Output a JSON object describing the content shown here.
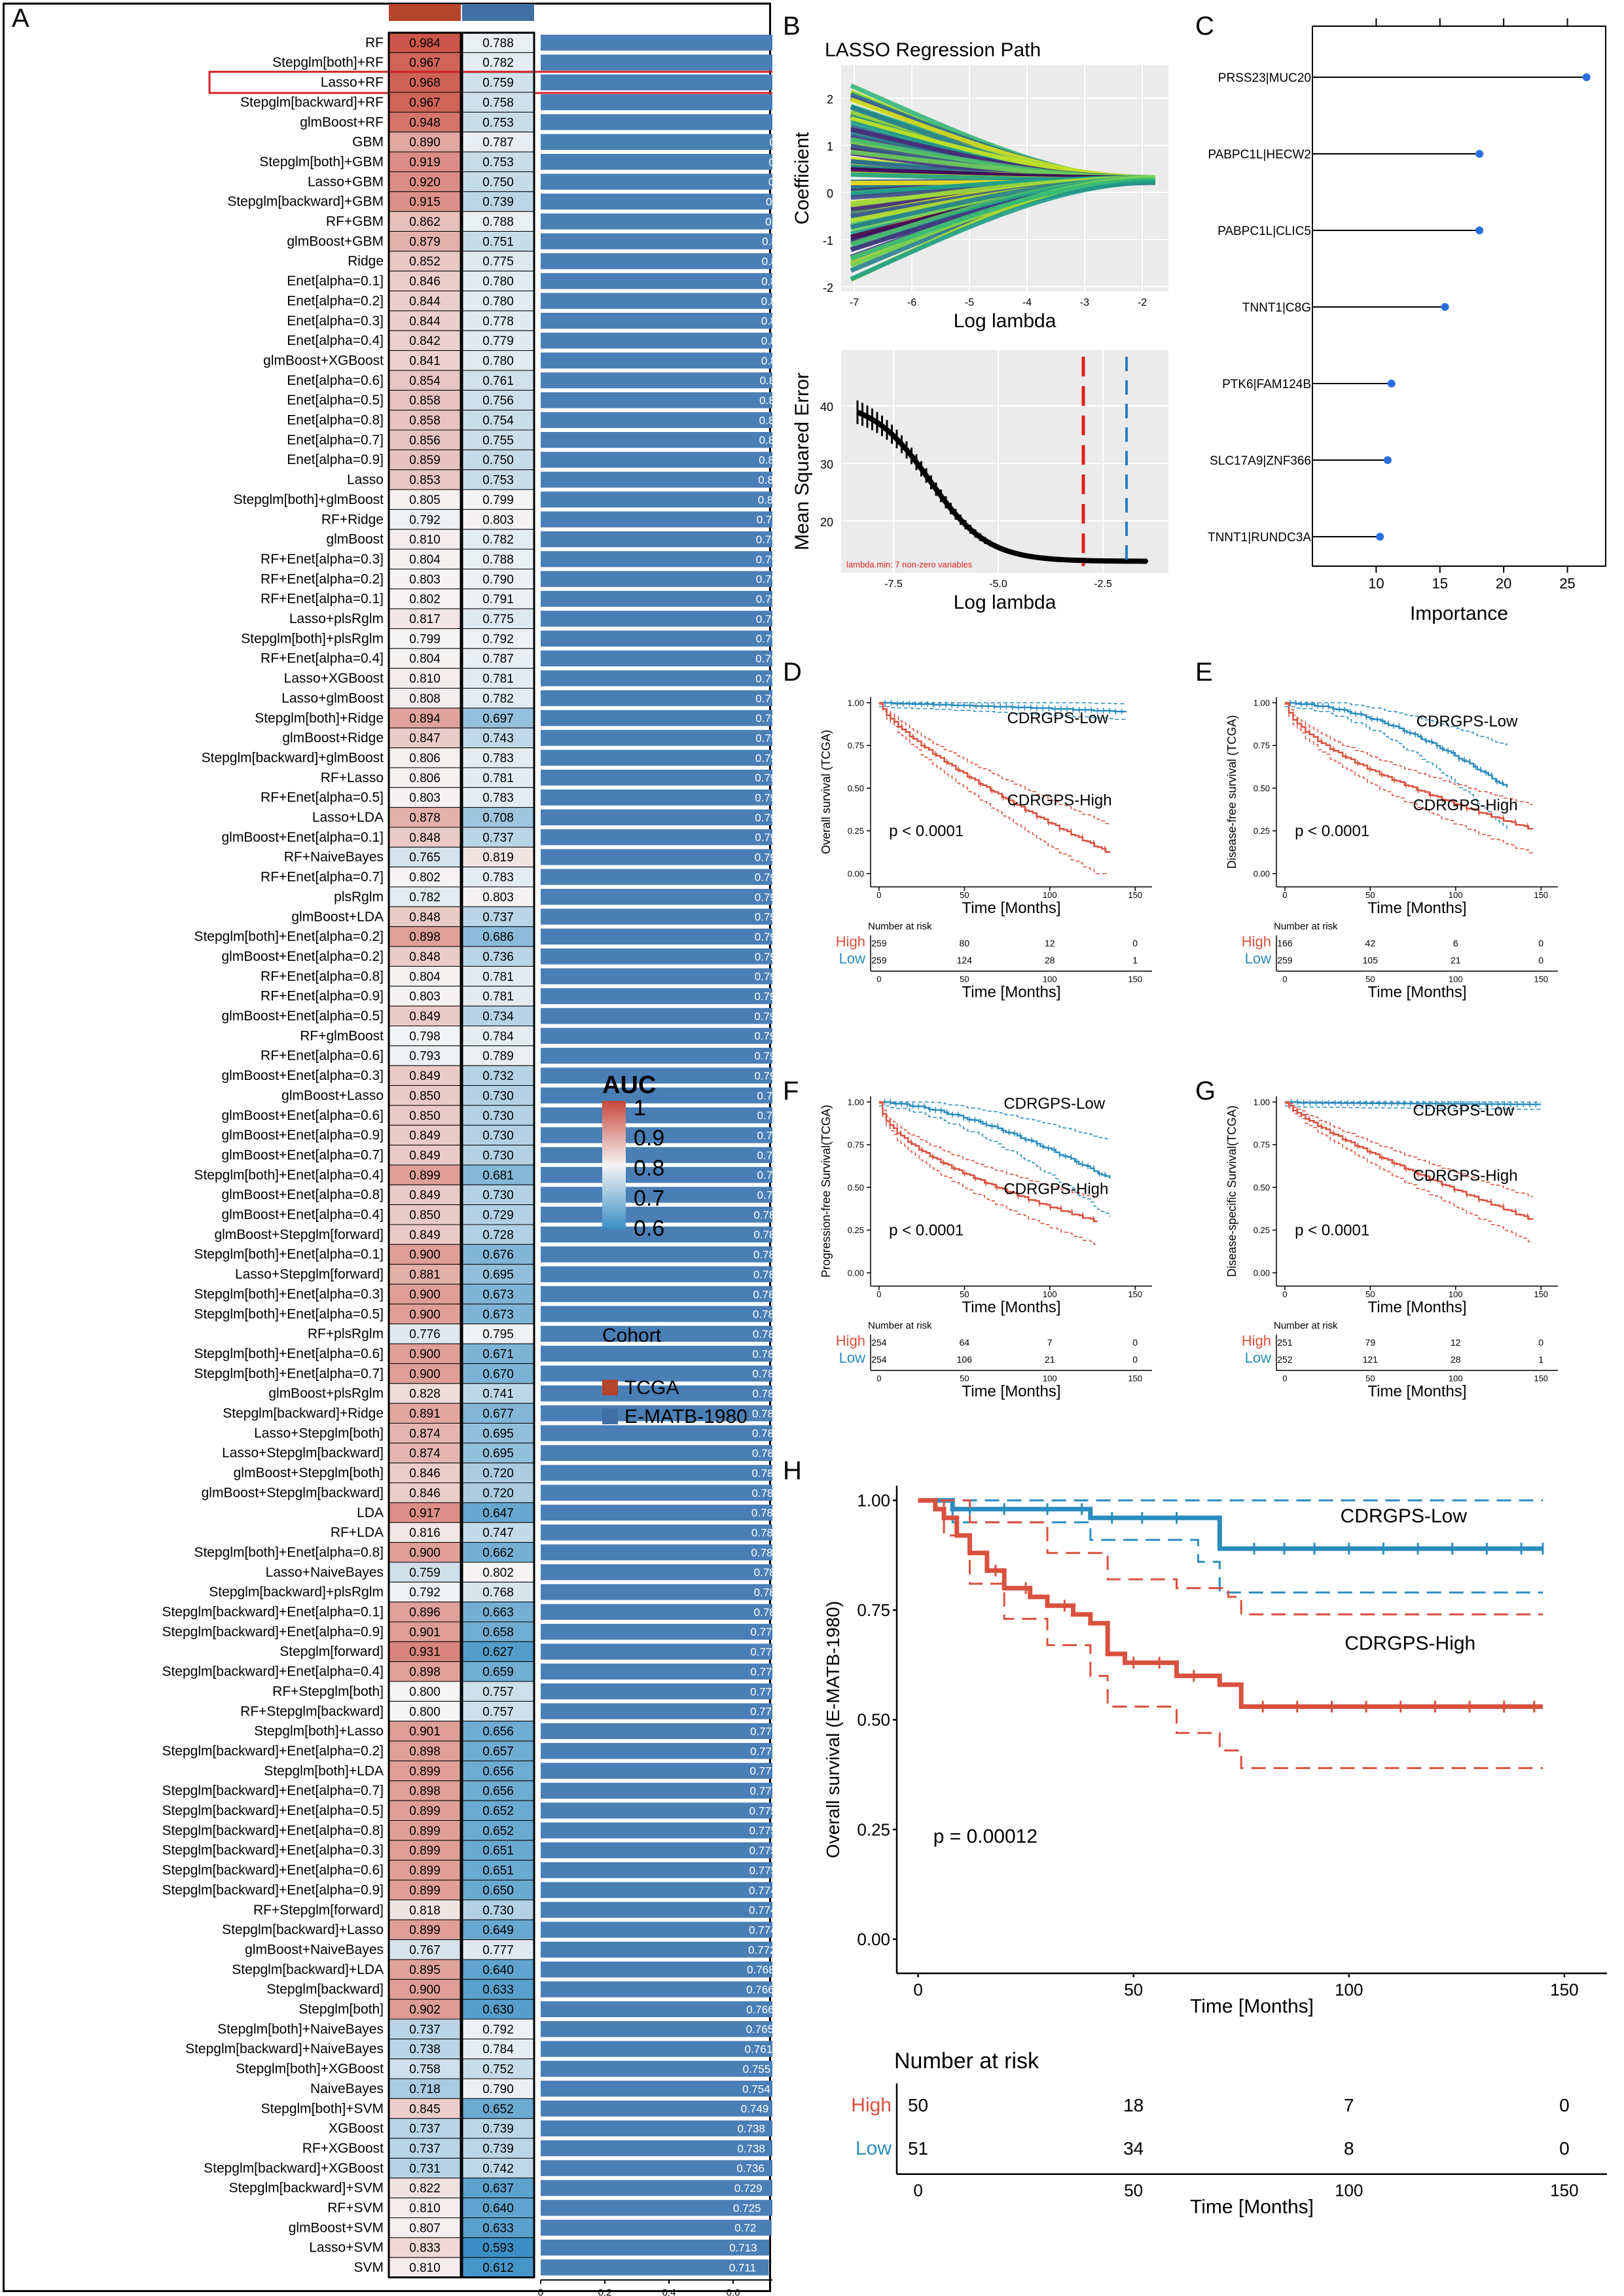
{
  "panels": {
    "A": "A",
    "B": "B",
    "C": "C",
    "D": "D",
    "E": "E",
    "F": "F",
    "G": "G",
    "H": "H"
  },
  "panelA": {
    "models": [
      "RF",
      "Stepglm[both]+RF",
      "Lasso+RF",
      "Stepglm[backward]+RF",
      "glmBoost+RF",
      "GBM",
      "Stepglm[both]+GBM",
      "Lasso+GBM",
      "Stepglm[backward]+GBM",
      "RF+GBM",
      "glmBoost+GBM",
      "Ridge",
      "Enet[alpha=0.1]",
      "Enet[alpha=0.2]",
      "Enet[alpha=0.3]",
      "Enet[alpha=0.4]",
      "glmBoost+XGBoost",
      "Enet[alpha=0.6]",
      "Enet[alpha=0.5]",
      "Enet[alpha=0.8]",
      "Enet[alpha=0.7]",
      "Enet[alpha=0.9]",
      "Lasso",
      "Stepglm[both]+glmBoost",
      "RF+Ridge",
      "glmBoost",
      "RF+Enet[alpha=0.3]",
      "RF+Enet[alpha=0.2]",
      "RF+Enet[alpha=0.1]",
      "Lasso+plsRglm",
      "Stepglm[both]+plsRglm",
      "RF+Enet[alpha=0.4]",
      "Lasso+XGBoost",
      "Lasso+glmBoost",
      "Stepglm[both]+Ridge",
      "glmBoost+Ridge",
      "Stepglm[backward]+glmBoost",
      "RF+Lasso",
      "RF+Enet[alpha=0.5]",
      "Lasso+LDA",
      "glmBoost+Enet[alpha=0.1]",
      "RF+NaiveBayes",
      "RF+Enet[alpha=0.7]",
      "plsRglm",
      "glmBoost+LDA",
      "Stepglm[both]+Enet[alpha=0.2]",
      "glmBoost+Enet[alpha=0.2]",
      "RF+Enet[alpha=0.8]",
      "RF+Enet[alpha=0.9]",
      "glmBoost+Enet[alpha=0.5]",
      "RF+glmBoost",
      "RF+Enet[alpha=0.6]",
      "glmBoost+Enet[alpha=0.3]",
      "glmBoost+Lasso",
      "glmBoost+Enet[alpha=0.6]",
      "glmBoost+Enet[alpha=0.9]",
      "glmBoost+Enet[alpha=0.7]",
      "Stepglm[both]+Enet[alpha=0.4]",
      "glmBoost+Enet[alpha=0.8]",
      "glmBoost+Enet[alpha=0.4]",
      "glmBoost+Stepglm[forward]",
      "Stepglm[both]+Enet[alpha=0.1]",
      "Lasso+Stepglm[forward]",
      "Stepglm[both]+Enet[alpha=0.3]",
      "Stepglm[both]+Enet[alpha=0.5]",
      "RF+plsRglm",
      "Stepglm[both]+Enet[alpha=0.6]",
      "Stepglm[both]+Enet[alpha=0.7]",
      "glmBoost+plsRglm",
      "Stepglm[backward]+Ridge",
      "Lasso+Stepglm[both]",
      "Lasso+Stepglm[backward]",
      "glmBoost+Stepglm[both]",
      "glmBoost+Stepglm[backward]",
      "LDA",
      "RF+LDA",
      "Stepglm[both]+Enet[alpha=0.8]",
      "Lasso+NaiveBayes",
      "Stepglm[backward]+plsRglm",
      "Stepglm[backward]+Enet[alpha=0.1]",
      "Stepglm[backward]+Enet[alpha=0.9]",
      "Stepglm[forward]",
      "Stepglm[backward]+Enet[alpha=0.4]",
      "RF+Stepglm[both]",
      "RF+Stepglm[backward]",
      "Stepglm[both]+Lasso",
      "Stepglm[backward]+Enet[alpha=0.2]",
      "Stepglm[both]+LDA",
      "Stepglm[backward]+Enet[alpha=0.7]",
      "Stepglm[backward]+Enet[alpha=0.5]",
      "Stepglm[backward]+Enet[alpha=0.8]",
      "Stepglm[backward]+Enet[alpha=0.3]",
      "Stepglm[backward]+Enet[alpha=0.6]",
      "Stepglm[backward]+Enet[alpha=0.9]",
      "RF+Stepglm[forward]",
      "Stepglm[backward]+Lasso",
      "glmBoost+NaiveBayes",
      "Stepglm[backward]+LDA",
      "Stepglm[backward]",
      "Stepglm[both]",
      "Stepglm[both]+NaiveBayes",
      "Stepglm[backward]+NaiveBayes",
      "Stepglm[both]+XGBoost",
      "NaiveBayes",
      "Stepglm[both]+SVM",
      "XGBoost",
      "RF+XGBoost",
      "Stepglm[backward]+XGBoost",
      "Stepglm[backward]+SVM",
      "RF+SVM",
      "glmBoost+SVM",
      "Lasso+SVM",
      "SVM"
    ],
    "tcga": [
      "0.984",
      "0.967",
      "0.968",
      "0.967",
      "0.948",
      "0.890",
      "0.919",
      "0.920",
      "0.915",
      "0.862",
      "0.879",
      "0.852",
      "0.846",
      "0.844",
      "0.844",
      "0.842",
      "0.841",
      "0.854",
      "0.858",
      "0.858",
      "0.856",
      "0.859",
      "0.853",
      "0.805",
      "0.792",
      "0.810",
      "0.804",
      "0.803",
      "0.802",
      "0.817",
      "0.799",
      "0.804",
      "0.810",
      "0.808",
      "0.894",
      "0.847",
      "0.806",
      "0.806",
      "0.803",
      "0.878",
      "0.848",
      "0.765",
      "0.802",
      "0.782",
      "0.848",
      "0.898",
      "0.848",
      "0.804",
      "0.803",
      "0.849",
      "0.798",
      "0.793",
      "0.849",
      "0.850",
      "0.850",
      "0.849",
      "0.849",
      "0.899",
      "0.849",
      "0.850",
      "0.849",
      "0.900",
      "0.881",
      "0.900",
      "0.900",
      "0.776",
      "0.900",
      "0.900",
      "0.828",
      "0.891",
      "0.874",
      "0.874",
      "0.846",
      "0.846",
      "0.917",
      "0.816",
      "0.900",
      "0.759",
      "0.792",
      "0.896",
      "0.901",
      "0.931",
      "0.898",
      "0.800",
      "0.800",
      "0.901",
      "0.898",
      "0.899",
      "0.898",
      "0.899",
      "0.899",
      "0.899",
      "0.899",
      "0.899",
      "0.818",
      "0.899",
      "0.767",
      "0.895",
      "0.900",
      "0.902",
      "0.737",
      "0.738",
      "0.758",
      "0.718",
      "0.845",
      "0.737",
      "0.737",
      "0.731",
      "0.822",
      "0.810",
      "0.807",
      "0.833",
      "0.810"
    ],
    "ematb": [
      "0.788",
      "0.782",
      "0.759",
      "0.758",
      "0.753",
      "0.787",
      "0.753",
      "0.750",
      "0.739",
      "0.788",
      "0.751",
      "0.775",
      "0.780",
      "0.780",
      "0.778",
      "0.779",
      "0.780",
      "0.761",
      "0.756",
      "0.754",
      "0.755",
      "0.750",
      "0.753",
      "0.799",
      "0.803",
      "0.782",
      "0.788",
      "0.790",
      "0.791",
      "0.775",
      "0.792",
      "0.787",
      "0.781",
      "0.782",
      "0.697",
      "0.743",
      "0.783",
      "0.781",
      "0.783",
      "0.708",
      "0.737",
      "0.819",
      "0.783",
      "0.803",
      "0.737",
      "0.686",
      "0.736",
      "0.781",
      "0.781",
      "0.734",
      "0.784",
      "0.789",
      "0.732",
      "0.730",
      "0.730",
      "0.730",
      "0.730",
      "0.681",
      "0.730",
      "0.729",
      "0.728",
      "0.676",
      "0.695",
      "0.673",
      "0.673",
      "0.795",
      "0.671",
      "0.670",
      "0.741",
      "0.677",
      "0.695",
      "0.695",
      "0.720",
      "0.720",
      "0.647",
      "0.747",
      "0.662",
      "0.802",
      "0.768",
      "0.663",
      "0.658",
      "0.627",
      "0.659",
      "0.757",
      "0.757",
      "0.656",
      "0.657",
      "0.656",
      "0.656",
      "0.652",
      "0.652",
      "0.651",
      "0.651",
      "0.650",
      "0.730",
      "0.649",
      "0.777",
      "0.640",
      "0.633",
      "0.630",
      "0.792",
      "0.784",
      "0.752",
      "0.790",
      "0.652",
      "0.739",
      "0.739",
      "0.742",
      "0.637",
      "0.640",
      "0.633",
      "0.593",
      "0.612"
    ],
    "mean": [
      "0.886",
      "0.875",
      "0.863",
      "0.862",
      "0.851",
      "0.838",
      "0.836",
      "0.835",
      "0.827",
      "0.825",
      "0.815",
      "0.814",
      "0.813",
      "0.812",
      "0.811",
      "0.811",
      "0.811",
      "0.808",
      "0.807",
      "0.806",
      "0.806",
      "0.805",
      "0.803",
      "0.802",
      "0.798",
      "0.796",
      "0.796",
      "0.796",
      "0.796",
      "0.796",
      "0.796",
      "0.795",
      "0.795",
      "0.795",
      "0.795",
      "0.795",
      "0.794",
      "0.793",
      "0.793",
      "0.793",
      "0.793",
      "0.792",
      "0.792",
      "0.792",
      "0.792",
      "0.792",
      "0.792",
      "0.792",
      "0.791",
      "0.791",
      "0.791",
      "0.791",
      "0.791",
      "0.79",
      "0.79",
      "0.79",
      "0.79",
      "0.79",
      "0.79",
      "0.789",
      "0.789",
      "0.788",
      "0.788",
      "0.787",
      "0.786",
      "0.786",
      "0.785",
      "0.785",
      "0.785",
      "0.784",
      "0.784",
      "0.784",
      "0.783",
      "0.783",
      "0.782",
      "0.782",
      "0.781",
      "0.78",
      "0.78",
      "0.78",
      "0.779",
      "0.779",
      "0.779",
      "0.778",
      "0.778",
      "0.778",
      "0.778",
      "0.777",
      "0.777",
      "0.775",
      "0.775",
      "0.775",
      "0.775",
      "0.774",
      "0.774",
      "0.774",
      "0.772",
      "0.768",
      "0.766",
      "0.766",
      "0.765",
      "0.761",
      "0.755",
      "0.754",
      "0.749",
      "0.738",
      "0.738",
      "0.736",
      "0.729",
      "0.725",
      "0.72",
      "0.713",
      "0.711"
    ],
    "bar_axis_ticks": [
      "0",
      "0.2",
      "0.4",
      "0.6",
      "0.8"
    ],
    "highlight_model": "Lasso+RF",
    "legend": {
      "auc_title": "AUC",
      "auc_ticks": [
        "1",
        "0.9",
        "0.8",
        "0.7",
        "0.6"
      ],
      "cohort_title": "Cohort",
      "cohorts": [
        "TCGA",
        "E-MATB-1980"
      ]
    },
    "colors": {
      "tcga": "#b5442d",
      "ematb": "#3f6fa3",
      "bar": "#4a7fb6",
      "high": "#d44a3a",
      "low": "#3f8fbf"
    }
  },
  "panelB": {
    "title": "LASSO Regression Path",
    "top": {
      "ylabel": "Coefficient",
      "xlabel": "Log lambda",
      "xticks": [
        "-7",
        "-6",
        "-5",
        "-4",
        "-3",
        "-2"
      ],
      "yticks": [
        "2",
        "1",
        "0",
        "-1",
        "-2"
      ]
    },
    "bottom": {
      "ylabel": "Mean Squared Error",
      "xlabel": "Log lambda",
      "xticks": [
        "-7.5",
        "-5.0",
        "-2.5"
      ],
      "yticks": [
        "40",
        "30",
        "20"
      ],
      "note": "lambda.min: 7 non-zero variables"
    }
  },
  "panelC": {
    "xlabel": "Importance",
    "xticks": [
      "10",
      "15",
      "20",
      "25"
    ],
    "features": [
      {
        "label": "PRSS23|MUC20",
        "value": 26.5
      },
      {
        "label": "PABPC1L|HECW2",
        "value": 18.1
      },
      {
        "label": "PABPC1L|CLIC5",
        "value": 18.1
      },
      {
        "label": "TNNT1|C8G",
        "value": 15.4
      },
      {
        "label": "PTK6|FAM124B",
        "value": 11.2
      },
      {
        "label": "SLC17A9|ZNF366",
        "value": 10.9
      },
      {
        "label": "TNNT1|RUNDC3A",
        "value": 10.3
      }
    ]
  },
  "panelD": {
    "ylabel": "Overall survival (TCGA)",
    "xlabel": "Time [Months]",
    "pvalue": "p < 0.0001",
    "low_label": "CDRGPS-Low",
    "high_label": "CDRGPS-High",
    "yticks": [
      "1.00",
      "0.75",
      "0.50",
      "0.25",
      "0.00"
    ],
    "xticks": [
      "0",
      "50",
      "100",
      "150"
    ],
    "risk_title": "Number at risk",
    "risk_high": [
      "259",
      "80",
      "12",
      "0"
    ],
    "risk_low": [
      "259",
      "124",
      "28",
      "1"
    ],
    "high": "High",
    "low": "Low"
  },
  "panelE": {
    "ylabel": "Disease-free survival (TCGA)",
    "xlabel": "Time [Months]",
    "pvalue": "p < 0.0001",
    "low_label": "CDRGPS-Low",
    "high_label": "CDRGPS-High",
    "yticks": [
      "1.00",
      "0.75",
      "0.50",
      "0.25",
      "0.00"
    ],
    "xticks": [
      "0",
      "50",
      "100",
      "150"
    ],
    "risk_title": "Number at risk",
    "risk_high": [
      "166",
      "42",
      "6",
      "0"
    ],
    "risk_low": [
      "259",
      "105",
      "21",
      "0"
    ],
    "high": "High",
    "low": "Low"
  },
  "panelF": {
    "ylabel": "Progression-free Survival(TCGA)",
    "xlabel": "Time [Months]",
    "pvalue": "p < 0.0001",
    "low_label": "CDRGPS-Low",
    "high_label": "CDRGPS-High",
    "yticks": [
      "1.00",
      "0.75",
      "0.50",
      "0.25",
      "0.00"
    ],
    "xticks": [
      "0",
      "50",
      "100",
      "150"
    ],
    "risk_title": "Number at risk",
    "risk_high": [
      "254",
      "64",
      "7",
      "0"
    ],
    "risk_low": [
      "254",
      "106",
      "21",
      "0"
    ],
    "high": "High",
    "low": "Low"
  },
  "panelG": {
    "ylabel": "Disease-specific Survival(TCGA)",
    "xlabel": "Time [Months]",
    "pvalue": "p < 0.0001",
    "low_label": "CDRGPS-Low",
    "high_label": "CDRGPS-High",
    "yticks": [
      "1.00",
      "0.75",
      "0.50",
      "0.25",
      "0.00"
    ],
    "xticks": [
      "0",
      "50",
      "100",
      "150"
    ],
    "risk_title": "Number at risk",
    "risk_high": [
      "251",
      "79",
      "12",
      "0"
    ],
    "risk_low": [
      "252",
      "121",
      "28",
      "1"
    ],
    "high": "High",
    "low": "Low"
  },
  "panelH": {
    "ylabel": "Overall survival (E-MATB-1980)",
    "xlabel": "Time [Months]",
    "pvalue": "p = 0.00012",
    "low_label": "CDRGPS-Low",
    "high_label": "CDRGPS-High",
    "yticks": [
      "1.00",
      "0.75",
      "0.50",
      "0.25",
      "0.00"
    ],
    "xticks": [
      "0",
      "50",
      "100",
      "150"
    ],
    "risk_title": "Number at risk",
    "risk_high": [
      "50",
      "18",
      "7",
      "0"
    ],
    "risk_low": [
      "51",
      "34",
      "8",
      "0"
    ],
    "high": "High",
    "low": "Low"
  },
  "chart_data": [
    {
      "type": "heatmap",
      "title": "",
      "columns": [
        "TCGA",
        "E-MATB-1980"
      ],
      "note": "AUC per model and cohort, with mean AUC bar",
      "scale": [
        0.6,
        1
      ]
    },
    {
      "type": "bar",
      "xlabel": "Importance",
      "categories": [
        "PRSS23|MUC20",
        "PABPC1L|HECW2",
        "PABPC1L|CLIC5",
        "TNNT1|C8G",
        "PTK6|FAM124B",
        "SLC17A9|ZNF366",
        "TNNT1|RUNDC3A"
      ],
      "values": [
        26.5,
        18.1,
        18.1,
        15.4,
        11.2,
        10.9,
        10.3
      ]
    },
    {
      "type": "line",
      "ylabel": "Overall survival (E-MATB-1980)",
      "xlabel": "Time [Months]",
      "series": [
        {
          "name": "CDRGPS-Low",
          "x": [
            0,
            10,
            40,
            65,
            70,
            145
          ],
          "values": [
            1.0,
            0.98,
            0.96,
            0.96,
            0.89,
            0.89
          ]
        },
        {
          "name": "CDRGPS-High",
          "x": [
            0,
            5,
            10,
            20,
            30,
            40,
            45,
            70,
            75,
            145
          ],
          "values": [
            1.0,
            0.96,
            0.88,
            0.8,
            0.76,
            0.72,
            0.63,
            0.58,
            0.53,
            0.53
          ]
        }
      ],
      "ylim": [
        0,
        1
      ],
      "xlim": [
        0,
        150
      ]
    }
  ]
}
